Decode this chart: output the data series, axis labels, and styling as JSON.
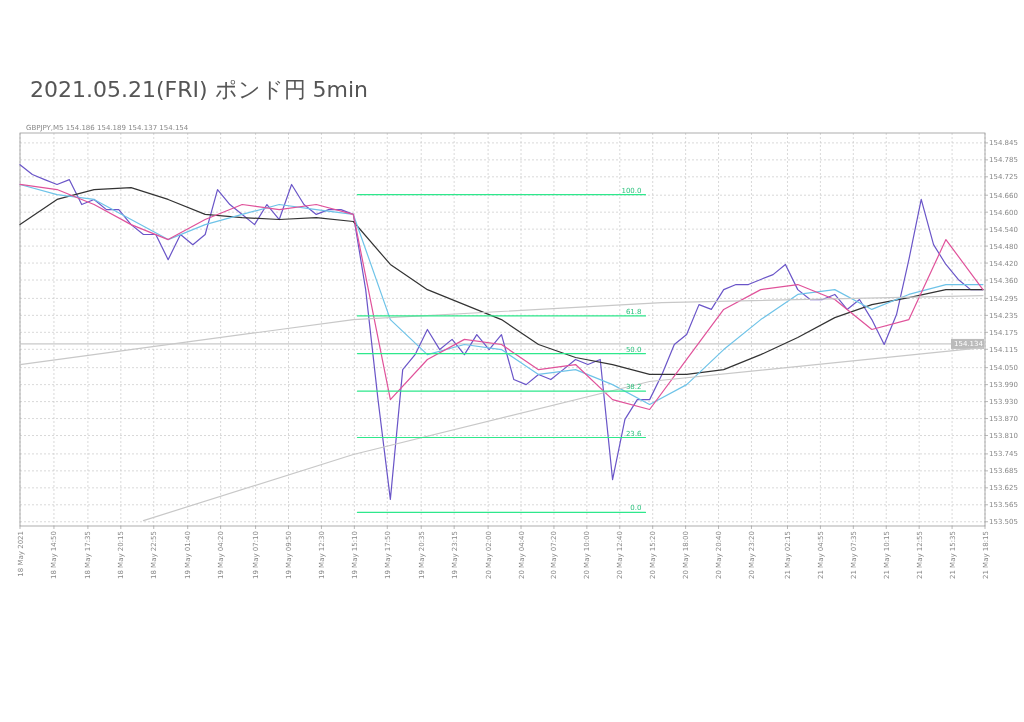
{
  "chart_data": {
    "type": "line",
    "title": "2021.05.21(FRI)  ポンド円 5min",
    "annotations": [
      "GBPJPY,M5 154.186 154.189 154.137 154.154",
      {
        "text": "100.0",
        "x": "2021-05-20T14:45",
        "y": 154.662
      },
      {
        "text": "61.8",
        "x": "2021-05-20T14:45",
        "y": 154.233
      },
      {
        "text": "50.0",
        "x": "2021-05-20T14:45",
        "y": 154.1
      },
      {
        "text": "38.2",
        "x": "2021-05-20T14:45",
        "y": 153.967
      },
      {
        "text": "23.6",
        "x": "2021-05-20T14:45",
        "y": 153.803
      },
      {
        "text": "0.0",
        "x": "2021-05-20T14:45",
        "y": 153.538
      }
    ],
    "x": [
      "2021-05-18T12:05",
      "2021-05-18T13:05",
      "2021-05-18T14:05",
      "2021-05-18T15:05",
      "2021-05-18T16:05",
      "2021-05-18T17:05",
      "2021-05-18T18:05",
      "2021-05-18T19:05",
      "2021-05-18T20:05",
      "2021-05-18T21:05",
      "2021-05-18T22:05",
      "2021-05-18T23:05",
      "2021-05-19T00:05",
      "2021-05-19T01:05",
      "2021-05-19T02:05",
      "2021-05-19T03:05",
      "2021-05-19T04:05",
      "2021-05-19T05:05",
      "2021-05-19T06:05",
      "2021-05-19T07:05",
      "2021-05-19T08:05",
      "2021-05-19T09:05",
      "2021-05-19T10:05",
      "2021-05-19T11:05",
      "2021-05-19T12:05",
      "2021-05-19T13:05",
      "2021-05-19T14:05",
      "2021-05-19T15:05",
      "2021-05-19T16:05",
      "2021-05-19T17:05",
      "2021-05-19T18:05",
      "2021-05-19T19:05",
      "2021-05-19T20:05",
      "2021-05-19T21:05",
      "2021-05-19T22:05",
      "2021-05-19T23:05",
      "2021-05-20T00:05",
      "2021-05-20T01:05",
      "2021-05-20T02:05",
      "2021-05-20T03:05",
      "2021-05-20T04:05",
      "2021-05-20T05:05",
      "2021-05-20T06:05",
      "2021-05-20T07:05",
      "2021-05-20T08:05",
      "2021-05-20T09:05",
      "2021-05-20T10:05",
      "2021-05-20T11:05",
      "2021-05-20T12:05",
      "2021-05-20T13:05",
      "2021-05-20T14:05",
      "2021-05-20T15:05",
      "2021-05-20T16:05",
      "2021-05-20T17:05",
      "2021-05-20T18:05",
      "2021-05-20T19:05",
      "2021-05-20T20:05",
      "2021-05-20T21:05",
      "2021-05-20T22:05",
      "2021-05-20T23:05",
      "2021-05-21T00:05",
      "2021-05-21T01:05",
      "2021-05-21T02:05",
      "2021-05-21T03:05",
      "2021-05-21T04:05",
      "2021-05-21T05:05",
      "2021-05-21T06:05",
      "2021-05-21T07:05",
      "2021-05-21T08:05",
      "2021-05-21T09:05",
      "2021-05-21T10:05",
      "2021-05-21T11:05",
      "2021-05-21T12:05",
      "2021-05-21T13:05",
      "2021-05-21T14:05",
      "2021-05-21T15:05",
      "2021-05-21T16:05",
      "2021-05-21T17:05",
      "2021-05-21T18:05"
    ],
    "series": [
      {
        "color": "#6a55c8",
        "values": [
          154.768,
          154.733,
          154.715,
          154.698,
          154.715,
          154.627,
          154.645,
          154.609,
          154.609,
          154.556,
          154.521,
          154.521,
          154.432,
          154.521,
          154.485,
          154.521,
          154.68,
          154.627,
          154.592,
          154.556,
          154.627,
          154.574,
          154.698,
          154.627,
          154.592,
          154.609,
          154.609,
          154.592,
          154.326,
          153.937,
          153.584,
          154.043,
          154.096,
          154.185,
          154.114,
          154.15,
          154.096,
          154.167,
          154.114,
          154.167,
          154.008,
          153.99,
          154.026,
          154.008,
          154.043,
          154.079,
          154.061,
          154.079,
          153.654,
          153.867,
          153.937,
          153.937,
          154.026,
          154.132,
          154.167,
          154.273,
          154.256,
          154.326,
          154.344,
          154.344,
          154.362,
          154.379,
          154.415,
          154.326,
          154.291,
          154.291,
          154.309,
          154.256,
          154.291,
          154.22,
          154.132,
          154.238,
          154.432,
          154.645,
          154.485,
          154.415,
          154.362,
          154.326,
          154.326
        ]
      },
      {
        "color": "#333333",
        "x": [
          "2021-05-18T12:05",
          "2021-05-18T15:05",
          "2021-05-18T18:05",
          "2021-05-18T21:05",
          "2021-05-19T00:05",
          "2021-05-19T03:05",
          "2021-05-19T06:05",
          "2021-05-19T09:05",
          "2021-05-19T12:05",
          "2021-05-19T15:05",
          "2021-05-19T18:05",
          "2021-05-19T21:05",
          "2021-05-20T00:05",
          "2021-05-20T03:05",
          "2021-05-20T06:05",
          "2021-05-20T09:05",
          "2021-05-20T12:05",
          "2021-05-20T15:05",
          "2021-05-20T18:05",
          "2021-05-20T21:05",
          "2021-05-21T00:05",
          "2021-05-21T03:05",
          "2021-05-21T06:05",
          "2021-05-21T09:05",
          "2021-05-21T12:05",
          "2021-05-21T15:05",
          "2021-05-21T18:05"
        ],
        "values": [
          154.556,
          154.645,
          154.68,
          154.687,
          154.645,
          154.592,
          154.581,
          154.574,
          154.581,
          154.567,
          154.415,
          154.326,
          154.273,
          154.22,
          154.132,
          154.086,
          154.061,
          154.026,
          154.026,
          154.043,
          154.096,
          154.157,
          154.227,
          154.273,
          154.298,
          154.326,
          154.326
        ]
      },
      {
        "color": "#6ec3e8",
        "x": [
          "2021-05-18T12:05",
          "2021-05-18T15:05",
          "2021-05-18T18:05",
          "2021-05-18T21:05",
          "2021-05-19T00:05",
          "2021-05-19T03:05",
          "2021-05-19T06:05",
          "2021-05-19T09:05",
          "2021-05-19T12:05",
          "2021-05-19T15:05",
          "2021-05-19T18:05",
          "2021-05-19T21:05",
          "2021-05-20T00:05",
          "2021-05-20T03:05",
          "2021-05-20T06:05",
          "2021-05-20T09:05",
          "2021-05-20T12:05",
          "2021-05-20T15:05",
          "2021-05-20T18:05",
          "2021-05-20T21:05",
          "2021-05-21T00:05",
          "2021-05-21T03:05",
          "2021-05-21T06:05",
          "2021-05-21T09:05",
          "2021-05-21T12:05",
          "2021-05-21T15:05",
          "2021-05-21T18:05"
        ],
        "values": [
          154.698,
          154.662,
          154.645,
          154.574,
          154.503,
          154.556,
          154.592,
          154.627,
          154.609,
          154.592,
          154.22,
          154.096,
          154.132,
          154.114,
          154.026,
          154.043,
          153.99,
          153.92,
          153.99,
          154.114,
          154.22,
          154.309,
          154.326,
          154.256,
          154.309,
          154.344,
          154.344
        ]
      },
      {
        "color": "#e0529a",
        "x": [
          "2021-05-18T12:05",
          "2021-05-18T15:05",
          "2021-05-18T18:05",
          "2021-05-18T21:05",
          "2021-05-19T00:05",
          "2021-05-19T03:05",
          "2021-05-19T06:05",
          "2021-05-19T09:05",
          "2021-05-19T12:05",
          "2021-05-19T15:05",
          "2021-05-19T18:05",
          "2021-05-19T21:05",
          "2021-05-20T00:05",
          "2021-05-20T03:05",
          "2021-05-20T06:05",
          "2021-05-20T09:05",
          "2021-05-20T12:05",
          "2021-05-20T15:05",
          "2021-05-20T18:05",
          "2021-05-20T21:05",
          "2021-05-21T00:05",
          "2021-05-21T03:05",
          "2021-05-21T06:05",
          "2021-05-21T09:05",
          "2021-05-21T12:05",
          "2021-05-21T15:05",
          "2021-05-21T18:05"
        ],
        "values": [
          154.698,
          154.68,
          154.627,
          154.556,
          154.503,
          154.574,
          154.627,
          154.609,
          154.627,
          154.592,
          153.937,
          154.079,
          154.15,
          154.132,
          154.043,
          154.061,
          153.937,
          153.902,
          154.079,
          154.256,
          154.326,
          154.344,
          154.291,
          154.185,
          154.22,
          154.503,
          154.326
        ]
      },
      {
        "color": "#c8c8c8",
        "x": [
          "2021-05-18T12:05",
          "2021-05-19T15:05",
          "2021-05-20T16:05",
          "2021-05-21T18:05"
        ],
        "values": [
          154.061,
          154.22,
          154.28,
          154.305
        ]
      },
      {
        "color": "#c8c8c8",
        "x": [
          "2021-05-18T22:05",
          "2021-05-19T15:05",
          "2021-05-20T15:05",
          "2021-05-21T18:05"
        ],
        "values": [
          153.509,
          153.743,
          154.001,
          154.121
        ]
      },
      {
        "color": "#2ee88c",
        "x": [
          "2021-05-19T15:25",
          "2021-05-20T14:45"
        ],
        "values": [
          154.662,
          154.662
        ]
      },
      {
        "color": "#2ee88c",
        "x": [
          "2021-05-19T15:25",
          "2021-05-20T14:45"
        ],
        "values": [
          154.233,
          154.233
        ]
      },
      {
        "color": "#2ee88c",
        "x": [
          "2021-05-19T15:25",
          "2021-05-20T14:45"
        ],
        "values": [
          154.1,
          154.1
        ]
      },
      {
        "color": "#2ee88c",
        "x": [
          "2021-05-19T15:25",
          "2021-05-20T14:45"
        ],
        "values": [
          153.967,
          153.967
        ]
      },
      {
        "color": "#2ee88c",
        "x": [
          "2021-05-19T15:25",
          "2021-05-20T14:45"
        ],
        "values": [
          153.803,
          153.803
        ]
      },
      {
        "color": "#2ee88c",
        "x": [
          "2021-05-19T15:25",
          "2021-05-20T14:45"
        ],
        "values": [
          153.538,
          153.538
        ]
      }
    ],
    "ref_lines": [
      {
        "axis": "y",
        "value": 154.134,
        "label": "154.134",
        "color": "#bbbbbb"
      }
    ],
    "xlim": [
      "2021-05-18T12:05",
      "2021-05-21T18:15"
    ],
    "xticks": [
      {
        "value": "2021-05-18T12:05",
        "label": "18 May 2021"
      },
      {
        "value": "2021-05-18T14:50",
        "label": "18 May 14:50"
      },
      {
        "value": "2021-05-18T17:35",
        "label": "18 May 17:35"
      },
      {
        "value": "2021-05-18T20:15",
        "label": "18 May 20:15"
      },
      {
        "value": "2021-05-18T22:55",
        "label": "18 May 22:55"
      },
      {
        "value": "2021-05-19T01:40",
        "label": "19 May 01:40"
      },
      {
        "value": "2021-05-19T04:20",
        "label": "19 May 04:20"
      },
      {
        "value": "2021-05-19T07:10",
        "label": "19 May 07:10"
      },
      {
        "value": "2021-05-19T09:50",
        "label": "19 May 09:50"
      },
      {
        "value": "2021-05-19T12:30",
        "label": "19 May 12:30"
      },
      {
        "value": "2021-05-19T15:10",
        "label": "19 May 15:10"
      },
      {
        "value": "2021-05-19T17:50",
        "label": "19 May 17:50"
      },
      {
        "value": "2021-05-19T20:35",
        "label": "19 May 20:35"
      },
      {
        "value": "2021-05-19T23:15",
        "label": "19 May 23:15"
      },
      {
        "value": "2021-05-20T02:00",
        "label": "20 May 02:00"
      },
      {
        "value": "2021-05-20T04:40",
        "label": "20 May 04:40"
      },
      {
        "value": "2021-05-20T07:20",
        "label": "20 May 07:20"
      },
      {
        "value": "2021-05-20T10:00",
        "label": "20 May 10:00"
      },
      {
        "value": "2021-05-20T12:40",
        "label": "20 May 12:40"
      },
      {
        "value": "2021-05-20T15:20",
        "label": "20 May 15:20"
      },
      {
        "value": "2021-05-20T18:00",
        "label": "20 May 18:00"
      },
      {
        "value": "2021-05-20T20:40",
        "label": "20 May 20:40"
      },
      {
        "value": "2021-05-20T23:20",
        "label": "20 May 23:20"
      },
      {
        "value": "2021-05-21T02:15",
        "label": "21 May 02:15"
      },
      {
        "value": "2021-05-21T04:55",
        "label": "21 May 04:55"
      },
      {
        "value": "2021-05-21T07:35",
        "label": "21 May 07:35"
      },
      {
        "value": "2021-05-21T10:15",
        "label": "21 May 10:15"
      },
      {
        "value": "2021-05-21T12:55",
        "label": "21 May 12:55"
      },
      {
        "value": "2021-05-21T15:35",
        "label": "21 May 15:35"
      },
      {
        "value": "2021-05-21T18:15",
        "label": "21 May 18:15"
      }
    ],
    "ylim": [
      153.49,
      154.88
    ],
    "yticks": [
      154.845,
      154.785,
      154.725,
      {
        "value": 154.66,
        "label": "154.660"
      },
      {
        "value": 154.6,
        "label": "154.600"
      },
      {
        "value": 154.54,
        "label": "154.540"
      },
      {
        "value": 154.48,
        "label": "154.480"
      },
      {
        "value": 154.42,
        "label": "154.420"
      },
      {
        "value": 154.36,
        "label": "154.360"
      },
      154.295,
      154.235,
      154.175,
      154.115,
      {
        "value": 154.05,
        "label": "154.050"
      },
      {
        "value": 153.99,
        "label": "153.990"
      },
      {
        "value": 153.93,
        "label": "153.930"
      },
      {
        "value": 153.87,
        "label": "153.870"
      },
      {
        "value": 153.81,
        "label": "153.810"
      },
      153.745,
      153.685,
      153.625,
      153.565,
      153.505
    ],
    "grid": true
  }
}
